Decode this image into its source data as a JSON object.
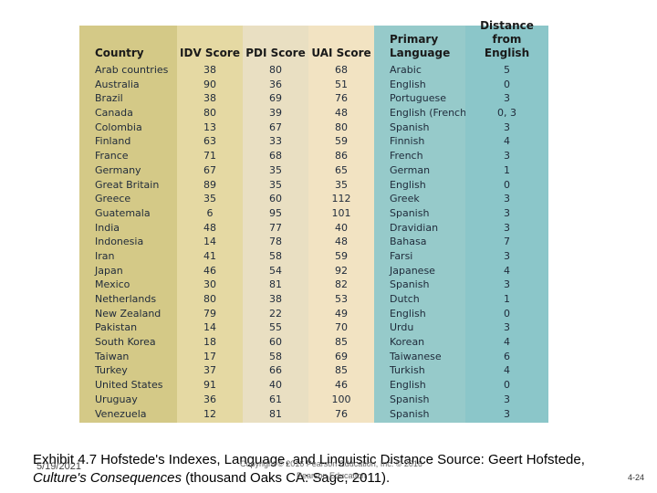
{
  "colors": {
    "country": "#D4C987",
    "idv": "#E5D9A3",
    "pdi": "#E9DFC2",
    "uai": "#F2E3C2",
    "lang": "#96CACA",
    "dist": "#8BC6C9"
  },
  "table": {
    "columns": [
      {
        "header": "Country",
        "align": "left"
      },
      {
        "header": "IDV Score",
        "align": "center"
      },
      {
        "header": "PDI Score",
        "align": "center"
      },
      {
        "header": "UAI Score",
        "align": "center"
      },
      {
        "header": "Primary\nLanguage",
        "align": "left"
      },
      {
        "header": "Distance from\nEnglish",
        "align": "center"
      }
    ],
    "rows": [
      [
        "Arab countries",
        "38",
        "80",
        "68",
        "Arabic",
        "5"
      ],
      [
        "Australia",
        "90",
        "36",
        "51",
        "English",
        "0"
      ],
      [
        "Brazil",
        "38",
        "69",
        "76",
        "Portuguese",
        "3"
      ],
      [
        "Canada",
        "80",
        "39",
        "48",
        "English (French)",
        "0, 3"
      ],
      [
        "Colombia",
        "13",
        "67",
        "80",
        "Spanish",
        "3"
      ],
      [
        "Finland",
        "63",
        "33",
        "59",
        "Finnish",
        "4"
      ],
      [
        "France",
        "71",
        "68",
        "86",
        "French",
        "3"
      ],
      [
        "Germany",
        "67",
        "35",
        "65",
        "German",
        "1"
      ],
      [
        "Great Britain",
        "89",
        "35",
        "35",
        "English",
        "0"
      ],
      [
        "Greece",
        "35",
        "60",
        "112",
        "Greek",
        "3"
      ],
      [
        "Guatemala",
        "6",
        "95",
        "101",
        "Spanish",
        "3"
      ],
      [
        "India",
        "48",
        "77",
        "40",
        "Dravidian",
        "3"
      ],
      [
        "Indonesia",
        "14",
        "78",
        "48",
        "Bahasa",
        "7"
      ],
      [
        "Iran",
        "41",
        "58",
        "59",
        "Farsi",
        "3"
      ],
      [
        "Japan",
        "46",
        "54",
        "92",
        "Japanese",
        "4"
      ],
      [
        "Mexico",
        "30",
        "81",
        "82",
        "Spanish",
        "3"
      ],
      [
        "Netherlands",
        "80",
        "38",
        "53",
        "Dutch",
        "1"
      ],
      [
        "New Zealand",
        "79",
        "22",
        "49",
        "English",
        "0"
      ],
      [
        "Pakistan",
        "14",
        "55",
        "70",
        "Urdu",
        "3"
      ],
      [
        "South Korea",
        "18",
        "60",
        "85",
        "Korean",
        "4"
      ],
      [
        "Taiwan",
        "17",
        "58",
        "69",
        "Taiwanese",
        "6"
      ],
      [
        "Turkey",
        "37",
        "66",
        "85",
        "Turkish",
        "4"
      ],
      [
        "United States",
        "91",
        "40",
        "46",
        "English",
        "0"
      ],
      [
        "Uruguay",
        "36",
        "61",
        "100",
        "Spanish",
        "3"
      ],
      [
        "Venezuela",
        "12",
        "81",
        "76",
        "Spanish",
        "3"
      ]
    ]
  },
  "footer": {
    "caption_start": "Exhibit 4.7 Hofstede's Indexes, Language, and Linguistic Distance Source: Geert Hofstede, ",
    "caption_italic": "Culture's Consequences",
    "caption_end": " (thousand Oaks CA: Sage, 2011).",
    "date": "5/19/2021",
    "copyright": "Copyright © 2016 Pearson Education, Inc. © 2016 Pearson Education",
    "page_number": "4-24"
  }
}
